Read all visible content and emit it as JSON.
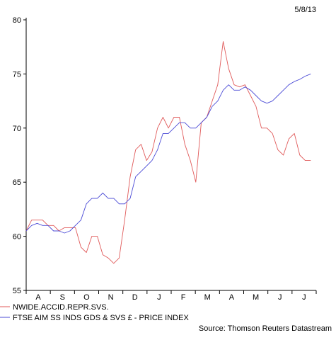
{
  "date_label": "5/8/13",
  "source_label": "Source: Thomson Reuters Datastream",
  "colors": {
    "series_1": "#e05a5a",
    "series_2": "#4b4bd6",
    "axis": "#000000",
    "text": "#000000"
  },
  "chart_data": {
    "type": "line",
    "title": "",
    "xlabel": "",
    "ylabel": "",
    "ylim": [
      55,
      80
    ],
    "yticks": [
      55,
      60,
      65,
      70,
      75,
      80
    ],
    "month_labels": [
      "A",
      "S",
      "O",
      "N",
      "D",
      "J",
      "F",
      "M",
      "A",
      "M",
      "J",
      "J"
    ],
    "x_unit": "weeks",
    "xlim": [
      0,
      53
    ],
    "grid": false,
    "legend_position": "bottom-left",
    "series": [
      {
        "name": "NWIDE.ACCID.REPR.SVS.",
        "color_key": "series_1",
        "x": [
          0,
          1,
          2,
          3,
          4,
          5,
          6,
          7,
          8,
          9,
          10,
          11,
          12,
          13,
          14,
          15,
          16,
          17,
          18,
          19,
          20,
          21,
          22,
          23,
          24,
          25,
          26,
          27,
          28,
          29,
          30,
          31,
          32,
          33,
          34,
          35,
          36,
          37,
          38,
          39,
          40,
          41,
          42,
          43,
          44,
          45,
          46,
          47,
          48,
          49,
          50,
          51,
          52
        ],
        "values": [
          60.5,
          61.5,
          61.5,
          61.5,
          61.0,
          61.0,
          60.5,
          60.8,
          60.8,
          60.8,
          59.0,
          58.5,
          60.0,
          60.0,
          58.3,
          58.0,
          57.5,
          58.0,
          61.5,
          65.5,
          68.0,
          68.5,
          67.0,
          67.8,
          70.0,
          71.0,
          70.0,
          71.0,
          71.0,
          68.5,
          67.0,
          65.0,
          70.5,
          71.0,
          72.5,
          74.0,
          78.0,
          75.5,
          74.0,
          73.8,
          74.0,
          73.0,
          72.0,
          70.0,
          70.0,
          69.5,
          68.0,
          67.5,
          69.0,
          69.5,
          67.5,
          67.0,
          67.0
        ]
      },
      {
        "name": "FTSE AIM SS INDS GDS & SVS £ - PRICE INDEX",
        "color_key": "series_2",
        "x": [
          0,
          1,
          2,
          3,
          4,
          5,
          6,
          7,
          8,
          9,
          10,
          11,
          12,
          13,
          14,
          15,
          16,
          17,
          18,
          19,
          20,
          21,
          22,
          23,
          24,
          25,
          26,
          27,
          28,
          29,
          30,
          31,
          32,
          33,
          34,
          35,
          36,
          37,
          38,
          39,
          40,
          41,
          42,
          43,
          44,
          45,
          46,
          47,
          48,
          49,
          50,
          51,
          52
        ],
        "values": [
          60.5,
          61.0,
          61.2,
          61.0,
          61.0,
          60.5,
          60.5,
          60.3,
          60.5,
          61.0,
          61.5,
          63.0,
          63.5,
          63.5,
          64.0,
          63.5,
          63.5,
          63.0,
          63.0,
          63.5,
          65.5,
          66.0,
          66.5,
          67.0,
          68.0,
          69.5,
          69.5,
          70.0,
          70.5,
          70.5,
          70.0,
          70.0,
          70.5,
          71.0,
          72.0,
          72.5,
          73.5,
          74.0,
          73.5,
          73.5,
          73.8,
          73.5,
          73.0,
          72.5,
          72.3,
          72.5,
          73.0,
          73.5,
          74.0,
          74.3,
          74.5,
          74.8,
          75.0
        ]
      }
    ]
  }
}
